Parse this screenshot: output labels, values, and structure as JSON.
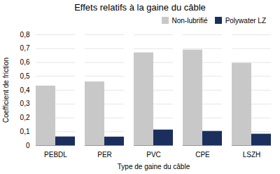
{
  "chart_data": {
    "type": "bar",
    "title": "Effets relatifs à la gaine du câble",
    "xlabel": "Type de gaine du câble",
    "ylabel": "Coefficient de friction",
    "categories": [
      "PEBDL",
      "PER",
      "PVC",
      "CPE",
      "LSZH"
    ],
    "series": [
      {
        "name": "Non-lubrifié",
        "color": "#c8c8c8",
        "values": [
          0.43,
          0.46,
          0.67,
          0.69,
          0.595
        ]
      },
      {
        "name": "Polywater LZ",
        "color": "#1a2f5e",
        "values": [
          0.063,
          0.062,
          0.113,
          0.103,
          0.083
        ]
      }
    ],
    "ylim": [
      0,
      0.8
    ],
    "yticks": [
      0,
      {
        "value": 0.1,
        "label": "0,1"
      },
      {
        "value": 0.2,
        "label": "0,2"
      },
      {
        "value": 0.3,
        "label": "0,3"
      },
      {
        "value": 0.4,
        "label": "0,4"
      },
      {
        "value": 0.5,
        "label": "0,5"
      },
      {
        "value": 0.6,
        "label": "0,6"
      },
      {
        "value": 0.7,
        "label": "0,7"
      },
      {
        "value": 0.8,
        "label": "0,8"
      }
    ],
    "grid": true,
    "legend": "upper right"
  }
}
